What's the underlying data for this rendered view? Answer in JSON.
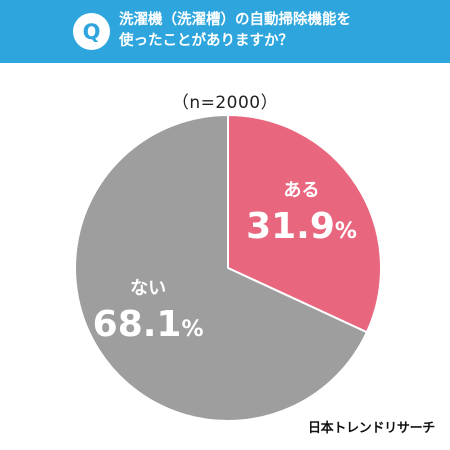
{
  "header": {
    "badge": "Q",
    "question_line1": "洗濯機（洗濯槽）の自動掃除機能を",
    "question_line2": "使ったことがありますか？",
    "color": "#2ea6dd"
  },
  "chart_data": {
    "type": "pie",
    "subtitle": "（n=2000）",
    "slices": [
      {
        "label": "ある",
        "value": 31.9,
        "value_text": "31.9",
        "unit": "%",
        "color": "#e8677f"
      },
      {
        "label": "ない",
        "value": 68.1,
        "value_text": "68.1",
        "unit": "%",
        "color": "#9e9e9e"
      }
    ]
  },
  "footer": {
    "brand": "日本トレンドリサーチ"
  }
}
